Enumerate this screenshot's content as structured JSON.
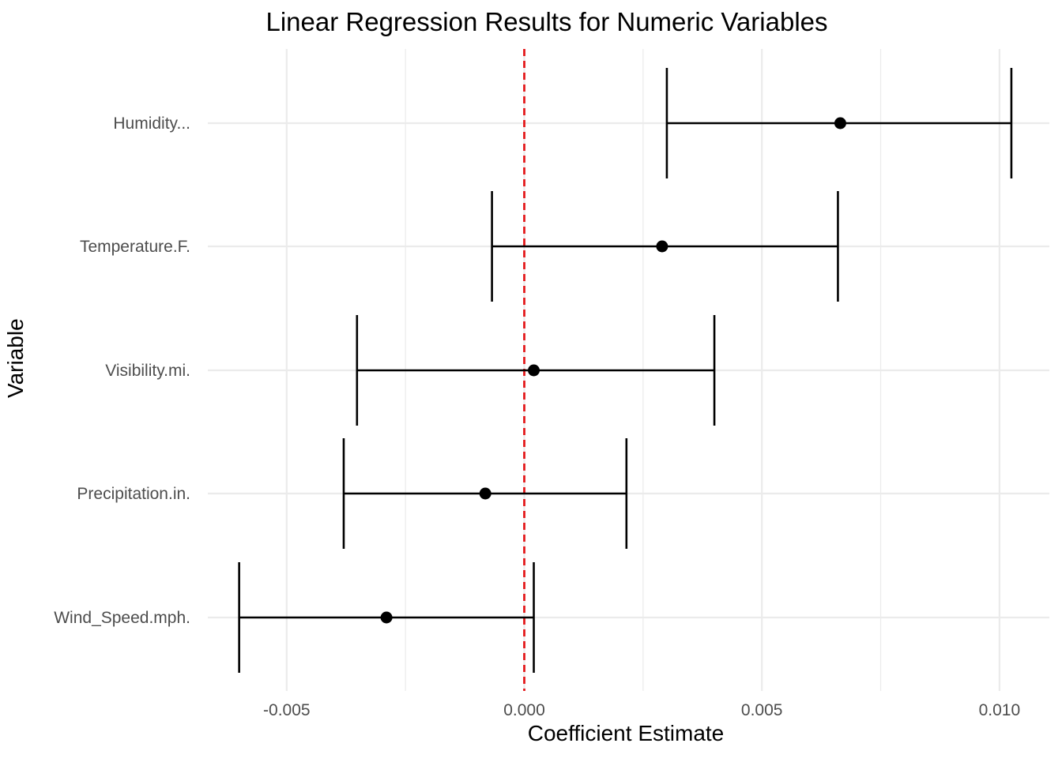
{
  "chart_data": {
    "type": "point-errorbar",
    "title": "Linear Regression Results for Numeric Variables",
    "xlabel": "Coefficient Estimate",
    "ylabel": "Variable",
    "xlim": [
      -0.0069,
      0.0103
    ],
    "x_ticks": [
      -0.005,
      0.0,
      0.005,
      0.01
    ],
    "x_tick_labels": [
      "-0.005",
      "0.000",
      "0.005",
      "0.010"
    ],
    "categories": [
      "Humidity...",
      "Temperature.F.",
      "Visibility.mi.",
      "Precipitation.in.",
      "Wind_Speed.mph."
    ],
    "series": [
      {
        "estimates": [
          0.00665,
          0.0029,
          0.0002,
          -0.00082,
          -0.0029
        ],
        "ci_lower": [
          0.003,
          -0.00068,
          -0.00352,
          -0.0038,
          -0.006
        ],
        "ci_upper": [
          0.01025,
          0.0066,
          0.004,
          0.00215,
          0.0002
        ]
      }
    ],
    "reference_line": {
      "x": 0,
      "style": "dashed",
      "color": "#e41a1c"
    },
    "grid": true,
    "colors": {
      "point": "#000000",
      "errorbar": "#000000",
      "grid": "#ebebeb",
      "reference": "#e41a1c",
      "tick_text": "#4d4d4d"
    }
  }
}
